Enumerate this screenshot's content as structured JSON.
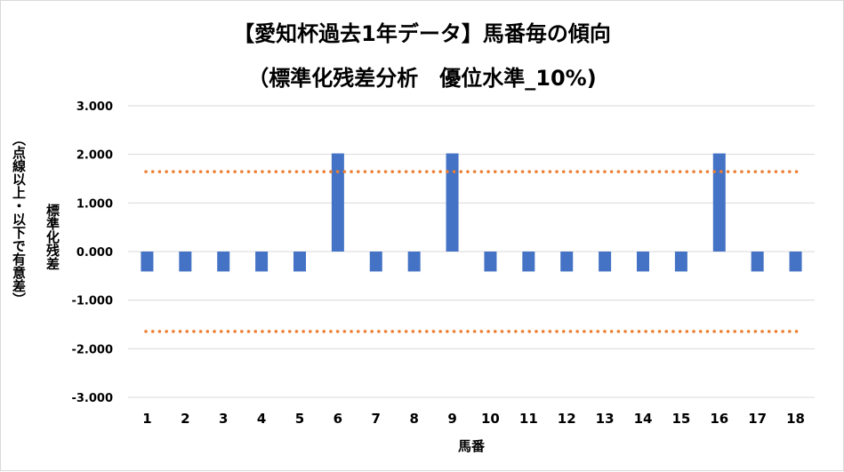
{
  "chart_data": {
    "type": "bar",
    "title": "【愛知杯過去1年データ】馬番毎の傾向",
    "subtitle": "（標準化残差分析　優位水準_10%)",
    "xlabel": "馬番",
    "ylabel": "標準化残差",
    "ylabel_note": "（点線以上・以下で有意差）",
    "categories": [
      "1",
      "2",
      "3",
      "4",
      "5",
      "6",
      "7",
      "8",
      "9",
      "10",
      "11",
      "12",
      "13",
      "14",
      "15",
      "16",
      "17",
      "18"
    ],
    "values": [
      -0.41,
      -0.41,
      -0.41,
      -0.41,
      -0.41,
      2.02,
      -0.41,
      -0.41,
      2.02,
      -0.41,
      -0.41,
      -0.41,
      -0.41,
      -0.41,
      -0.41,
      2.02,
      -0.41,
      -0.41
    ],
    "ylim": [
      -3.0,
      3.0
    ],
    "yticks": [
      "3.000",
      "2.000",
      "1.000",
      "0.000",
      "-1.000",
      "-2.000",
      "-3.000"
    ],
    "ytick_values": [
      3,
      2,
      1,
      0,
      -1,
      -2,
      -3
    ],
    "thresholds": [
      1.645,
      -1.645
    ],
    "grid": true,
    "bar_color": "#4472c4",
    "threshold_color": "#ed7d31",
    "grid_color": "#d9d9d9"
  }
}
